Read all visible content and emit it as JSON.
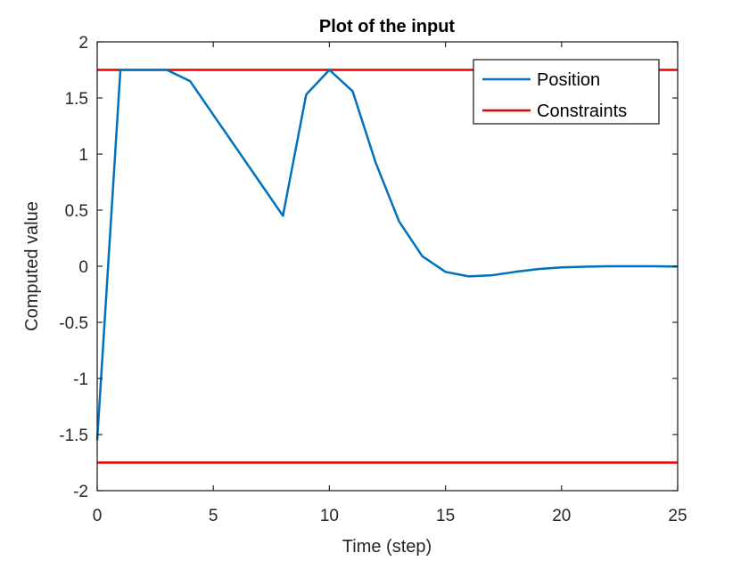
{
  "chart_data": {
    "type": "line",
    "title": "Plot of the input",
    "xlabel": "Time (step)",
    "ylabel": "Computed value",
    "xlim": [
      0,
      25
    ],
    "ylim": [
      -2,
      2
    ],
    "xticks": [
      0,
      5,
      10,
      15,
      20,
      25
    ],
    "yticks": [
      -2,
      -1.5,
      -1,
      -0.5,
      0,
      0.5,
      1,
      1.5,
      2
    ],
    "xtick_labels": [
      "0",
      "5",
      "10",
      "15",
      "20",
      "25"
    ],
    "ytick_labels": [
      "-2",
      "-1.5",
      "-1",
      "-0.5",
      "0",
      "0.5",
      "1",
      "1.5",
      "2"
    ],
    "grid": false,
    "legend_position": "top-right",
    "series": [
      {
        "name": "Position",
        "color": "#0072BD",
        "x": [
          0,
          1,
          2,
          3,
          4,
          5,
          6,
          7,
          8,
          9,
          10,
          11,
          12,
          13,
          14,
          15,
          16,
          17,
          18,
          19,
          20,
          21,
          22,
          23,
          24,
          25
        ],
        "y": [
          -1.55,
          1.75,
          1.75,
          1.75,
          1.65,
          1.35,
          1.05,
          0.75,
          0.45,
          1.53,
          1.75,
          1.56,
          0.92,
          0.4,
          0.09,
          -0.05,
          -0.09,
          -0.08,
          -0.05,
          -0.025,
          -0.01,
          -0.004,
          0.0,
          0.0,
          0.0,
          -0.003
        ]
      },
      {
        "name": "Constraints",
        "color": "#E60000",
        "x": [
          0,
          25
        ],
        "y": [
          1.75,
          1.75
        ]
      },
      {
        "color": "#E60000",
        "x": [
          0,
          25
        ],
        "y": [
          -1.75,
          -1.75
        ]
      }
    ]
  }
}
